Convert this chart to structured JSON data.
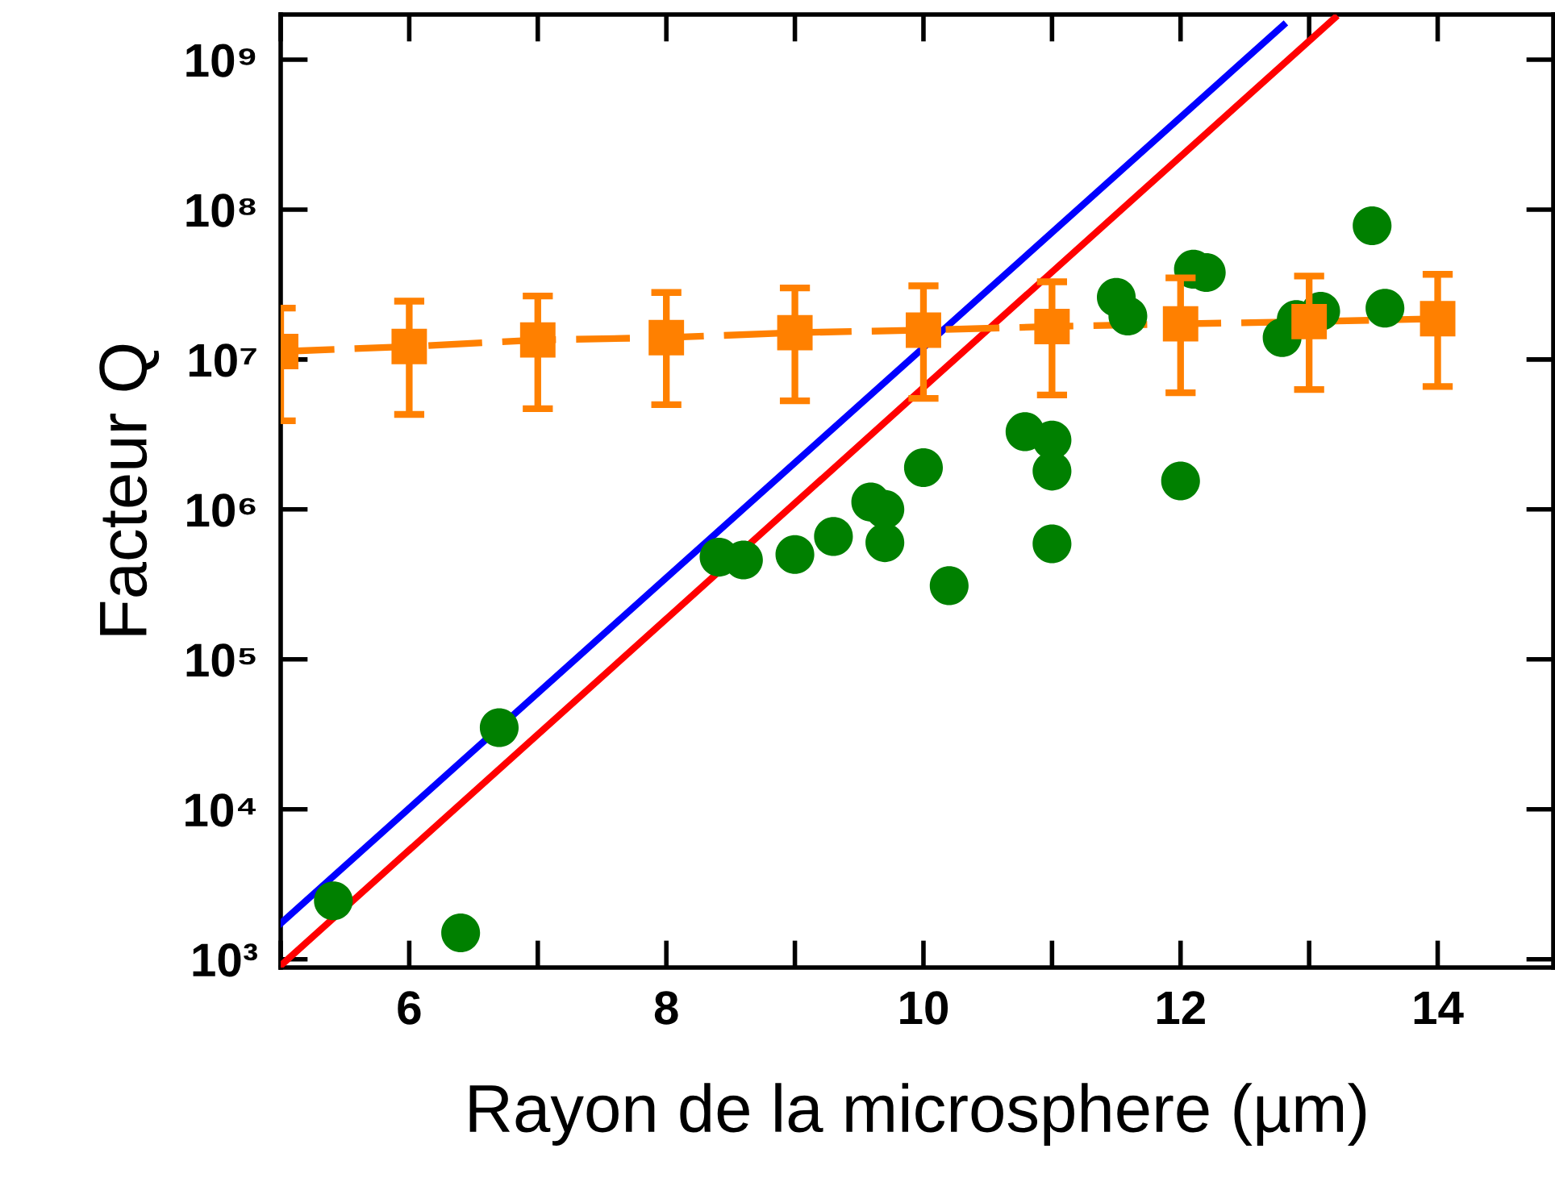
{
  "chart_data": {
    "type": "scatter",
    "xlabel": "Rayon de la microsphere (µm)",
    "ylabel": "Facteur Q",
    "log": "y",
    "grid": false,
    "xlim": [
      5,
      14.9
    ],
    "xticks": [
      6,
      8,
      10,
      12,
      14
    ],
    "ylim": [
      880,
      2000000000
    ],
    "yticks": [
      {
        "value": 1000,
        "label": "10³"
      },
      {
        "value": 10000,
        "label": "10⁴"
      },
      {
        "value": 100000,
        "label": "10⁵"
      },
      {
        "value": 1000000,
        "label": "10⁶"
      },
      {
        "value": 10000000,
        "label": "10⁷"
      },
      {
        "value": 100000000,
        "label": "10⁸"
      },
      {
        "value": 1000000000,
        "label": "10⁹"
      }
    ],
    "series": [
      {
        "type": "line",
        "color": "#0000ff",
        "marker": "none",
        "line_style": "solid",
        "x": [
          5,
          8,
          10,
          12.8
        ],
        "values": [
          1730,
          350000,
          12000000,
          1700000000
        ]
      },
      {
        "type": "line",
        "color": "#ff0000",
        "marker": "none",
        "line_style": "solid",
        "x": [
          5,
          8,
          10,
          13.2
        ],
        "values": [
          906,
          186000,
          6500000,
          1900000000
        ]
      },
      {
        "type": "line",
        "color": "#ff8000",
        "marker": "square",
        "line_style": "dashed",
        "x": [
          5,
          6,
          7,
          8,
          9,
          10,
          11,
          12,
          13,
          14
        ],
        "values": [
          11300000,
          12200000,
          13500000,
          14000000,
          15100000,
          15700000,
          16600000,
          17300000,
          17900000,
          18700000
        ],
        "errors": [
          [
            3900000,
            22000000
          ],
          [
            4300000,
            24500000
          ],
          [
            4700000,
            26500000
          ],
          [
            5000000,
            28000000
          ],
          [
            5300000,
            30000000
          ],
          [
            5500000,
            31000000
          ],
          [
            5800000,
            33000000
          ],
          [
            6000000,
            35000000
          ],
          [
            6300000,
            36000000
          ],
          [
            6600000,
            37000000
          ]
        ]
      },
      {
        "color": "#008000",
        "marker": "circle",
        "x": [
          5.41,
          6.4,
          6.7,
          8.41,
          8.6,
          9.0,
          9.3,
          9.59,
          9.7,
          9.7,
          10.0,
          10.2,
          10.79,
          11.0,
          11.0,
          11.0,
          11.5,
          11.59,
          12.0,
          12.1,
          12.2,
          12.79,
          12.9,
          13.09,
          13.49,
          13.59
        ],
        "values": [
          2450,
          1500,
          35000,
          480000,
          460000,
          500000,
          660000,
          1120000,
          1000000,
          600000,
          1900000,
          310000,
          3300000,
          2900000,
          1800000,
          590000,
          26000000,
          19500000,
          1550000,
          40000000,
          38000000,
          14000000,
          18500000,
          21000000,
          78000000,
          22000000
        ]
      }
    ]
  }
}
